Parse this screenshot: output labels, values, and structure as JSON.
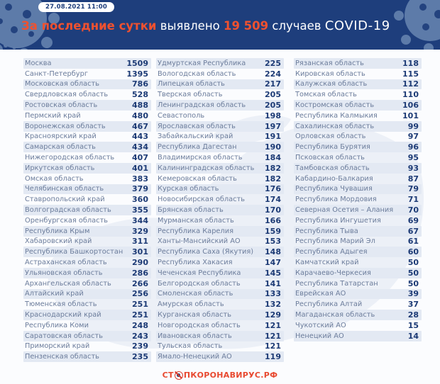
{
  "header": {
    "timestamp": "27.08.2021 11:00",
    "title_highlight": "За последние сутки",
    "title_mid": " выявлено ",
    "title_number": "19 509",
    "title_suffix": " случаев ",
    "title_covid": "COVID-19"
  },
  "colors": {
    "background_navy": "#1e3e7c",
    "accent_orange": "#f0512f",
    "number_navy": "#1c3a75",
    "row_shade": "#e3e9f3",
    "panel": "#fbfcfe",
    "logo_red": "#e8492f"
  },
  "footer": {
    "logo_prefix": "СТ",
    "logo_suffix": "ПКОРОНАВИРУС.РФ",
    "stop_icon": "no-entry-icon"
  },
  "chart_data": {
    "type": "table",
    "title": "За последние сутки выявлено 19 509 случаев COVID-19",
    "timestamp": "27.08.2021 11:00",
    "total_new_cases": 19509,
    "columns": [
      {
        "rows": [
          {
            "region": "Москва",
            "value": "1509"
          },
          {
            "region": "Санкт-Петербург",
            "value": "1395"
          },
          {
            "region": "Московская область",
            "value": "786"
          },
          {
            "region": "Свердловская область",
            "value": "528"
          },
          {
            "region": "Ростовская область",
            "value": "488"
          },
          {
            "region": "Пермский край",
            "value": "480"
          },
          {
            "region": "Воронежская область",
            "value": "467"
          },
          {
            "region": "Красноярский край",
            "value": "443"
          },
          {
            "region": "Самарская область",
            "value": "434"
          },
          {
            "region": "Нижегородская область",
            "value": "407"
          },
          {
            "region": "Иркутская область",
            "value": "401"
          },
          {
            "region": "Омская область",
            "value": "383"
          },
          {
            "region": "Челябинская область",
            "value": "379"
          },
          {
            "region": "Ставропольский край",
            "value": "360"
          },
          {
            "region": "Волгоградская область",
            "value": "355"
          },
          {
            "region": "Оренбургская область",
            "value": "344"
          },
          {
            "region": "Республика Крым",
            "value": "329"
          },
          {
            "region": "Хабаровский край",
            "value": "311"
          },
          {
            "region": "Республика Башкортостан",
            "value": "301"
          },
          {
            "region": "Астраханская область",
            "value": "290"
          },
          {
            "region": "Ульяновская область",
            "value": "286"
          },
          {
            "region": "Архангельская область",
            "value": "266"
          },
          {
            "region": "Алтайский край",
            "value": "256"
          },
          {
            "region": "Тюменская область",
            "value": "251"
          },
          {
            "region": "Краснодарский край",
            "value": "251"
          },
          {
            "region": "Республика Коми",
            "value": "248"
          },
          {
            "region": "Саратовская область",
            "value": "243"
          },
          {
            "region": "Приморский край",
            "value": "239"
          },
          {
            "region": "Пензенская область",
            "value": "235"
          }
        ]
      },
      {
        "rows": [
          {
            "region": "Удмуртская Республика",
            "value": "225"
          },
          {
            "region": "Вологодская область",
            "value": "224"
          },
          {
            "region": "Липецкая область",
            "value": "217"
          },
          {
            "region": "Тверская область",
            "value": "205"
          },
          {
            "region": "Ленинградская область",
            "value": "205"
          },
          {
            "region": "Севастополь",
            "value": "198"
          },
          {
            "region": "Ярославская область",
            "value": "197"
          },
          {
            "region": "Забайкальский край",
            "value": "191"
          },
          {
            "region": "Республика Дагестан",
            "value": "190"
          },
          {
            "region": "Владимирская область",
            "value": "184"
          },
          {
            "region": "Калининградская область",
            "value": "182"
          },
          {
            "region": "Кемеровская область",
            "value": "182"
          },
          {
            "region": "Курская область",
            "value": "176"
          },
          {
            "region": "Новосибирская область",
            "value": "174"
          },
          {
            "region": "Брянская область",
            "value": "170"
          },
          {
            "region": "Мурманская область",
            "value": "166"
          },
          {
            "region": "Республика Карелия",
            "value": "159"
          },
          {
            "region": "Ханты-Мансийский АО",
            "value": "153"
          },
          {
            "region": "Республика Саха (Якутия)",
            "value": "148"
          },
          {
            "region": "Республика Хакасия",
            "value": "147"
          },
          {
            "region": "Чеченская Республика",
            "value": "145"
          },
          {
            "region": "Белгородская область",
            "value": "141"
          },
          {
            "region": "Смоленская область",
            "value": "133"
          },
          {
            "region": "Амурская область",
            "value": "132"
          },
          {
            "region": "Курганская область",
            "value": "129"
          },
          {
            "region": "Новгородская область",
            "value": "121"
          },
          {
            "region": "Ивановская область",
            "value": "121"
          },
          {
            "region": "Тульская область",
            "value": "121"
          },
          {
            "region": "Ямало-Ненецкий АО",
            "value": "119"
          }
        ]
      },
      {
        "rows": [
          {
            "region": "Рязанская область",
            "value": "118"
          },
          {
            "region": "Кировская область",
            "value": "115"
          },
          {
            "region": "Калужская область",
            "value": "112"
          },
          {
            "region": "Томская область",
            "value": "110"
          },
          {
            "region": "Костромская область",
            "value": "106"
          },
          {
            "region": "Республика Калмыкия",
            "value": "101"
          },
          {
            "region": "Сахалинская область",
            "value": "99"
          },
          {
            "region": "Орловская область",
            "value": "97"
          },
          {
            "region": "Республика Бурятия",
            "value": "96"
          },
          {
            "region": "Псковская область",
            "value": "95"
          },
          {
            "region": "Тамбовская область",
            "value": "93"
          },
          {
            "region": "Кабардино-Балкария",
            "value": "87"
          },
          {
            "region": "Республика Чувашия",
            "value": "79"
          },
          {
            "region": "Республика Мордовия",
            "value": "71"
          },
          {
            "region": "Северная Осетия – Алания",
            "value": "70"
          },
          {
            "region": "Республика Ингушетия",
            "value": "69"
          },
          {
            "region": "Республика Тыва",
            "value": "67"
          },
          {
            "region": "Республика Марий Эл",
            "value": "61"
          },
          {
            "region": "Республика Адыгея",
            "value": "60"
          },
          {
            "region": "Камчатский край",
            "value": "50"
          },
          {
            "region": "Карачаево-Черкесия",
            "value": "50"
          },
          {
            "region": "Республика Татарстан",
            "value": "50"
          },
          {
            "region": "Еврейская АО",
            "value": "39"
          },
          {
            "region": "Республика Алтай",
            "value": "37"
          },
          {
            "region": "Магаданская область",
            "value": "28"
          },
          {
            "region": "Чукотский АО",
            "value": "15"
          },
          {
            "region": "Ненецкий АО",
            "value": "14"
          }
        ]
      }
    ]
  }
}
